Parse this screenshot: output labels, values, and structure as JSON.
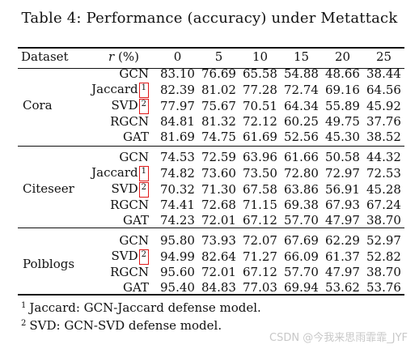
{
  "caption": "Table 4: Performance (accuracy) under Metattack",
  "header": {
    "dataset": "Dataset",
    "r_var": "r",
    "r_unit": "(%)",
    "rates": [
      "0",
      "5",
      "10",
      "15",
      "20",
      "25"
    ]
  },
  "groups": [
    {
      "dataset": "Cora",
      "rows": [
        {
          "method": "GCN",
          "mark": "",
          "values": [
            "83.10",
            "76.69",
            "65.58",
            "54.88",
            "48.66",
            "38.44"
          ]
        },
        {
          "method": "Jaccard",
          "mark": "1",
          "values": [
            "82.39",
            "81.02",
            "77.28",
            "72.74",
            "69.16",
            "64.56"
          ]
        },
        {
          "method": "SVD",
          "mark": "2",
          "values": [
            "77.97",
            "75.67",
            "70.51",
            "64.34",
            "55.89",
            "45.92"
          ]
        },
        {
          "method": "RGCN",
          "mark": "",
          "values": [
            "84.81",
            "81.32",
            "72.12",
            "60.25",
            "49.75",
            "37.76"
          ]
        },
        {
          "method": "GAT",
          "mark": "",
          "values": [
            "81.69",
            "74.75",
            "61.69",
            "52.56",
            "45.30",
            "38.52"
          ]
        }
      ]
    },
    {
      "dataset": "Citeseer",
      "rows": [
        {
          "method": "GCN",
          "mark": "",
          "values": [
            "74.53",
            "72.59",
            "63.96",
            "61.66",
            "50.58",
            "44.32"
          ]
        },
        {
          "method": "Jaccard",
          "mark": "1",
          "values": [
            "74.82",
            "73.60",
            "73.50",
            "72.80",
            "72.97",
            "72.53"
          ]
        },
        {
          "method": "SVD",
          "mark": "2",
          "values": [
            "70.32",
            "71.30",
            "67.58",
            "63.86",
            "56.91",
            "45.28"
          ]
        },
        {
          "method": "RGCN",
          "mark": "",
          "values": [
            "74.41",
            "72.68",
            "71.15",
            "69.38",
            "67.93",
            "67.24"
          ]
        },
        {
          "method": "GAT",
          "mark": "",
          "values": [
            "74.23",
            "72.01",
            "67.12",
            "57.70",
            "47.97",
            "38.70"
          ]
        }
      ]
    },
    {
      "dataset": "Polblogs",
      "rows": [
        {
          "method": "GCN",
          "mark": "",
          "values": [
            "95.80",
            "73.93",
            "72.07",
            "67.69",
            "62.29",
            "52.97"
          ]
        },
        {
          "method": "SVD",
          "mark": "2",
          "values": [
            "94.99",
            "82.64",
            "71.27",
            "66.09",
            "61.37",
            "52.82"
          ]
        },
        {
          "method": "RGCN",
          "mark": "",
          "values": [
            "95.60",
            "72.01",
            "67.12",
            "57.70",
            "47.97",
            "38.70"
          ]
        },
        {
          "method": "GAT",
          "mark": "",
          "values": [
            "95.40",
            "84.83",
            "77.03",
            "69.94",
            "53.62",
            "53.76"
          ]
        }
      ]
    }
  ],
  "footnotes": [
    {
      "mark": "1",
      "text": "Jaccard: GCN-Jaccard defense model."
    },
    {
      "mark": "2",
      "text": "SVD: GCN-SVD defense model."
    }
  ],
  "watermark": "CSDN @今我来思雨霏霏_JYF",
  "colors": {
    "highlight_box": "#e01818",
    "text": "#111111"
  }
}
